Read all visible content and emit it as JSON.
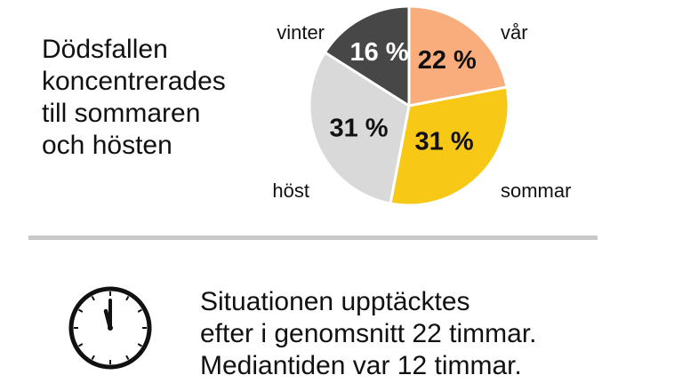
{
  "headline": {
    "lines": [
      "Dödsfallen",
      "koncentrerades",
      "till sommaren",
      "och hösten"
    ]
  },
  "chart_data": {
    "type": "pie",
    "unit": "%",
    "slices": [
      {
        "label": "vår",
        "value": 22,
        "color": "#f9ad7c",
        "value_text_color": "#111111"
      },
      {
        "label": "sommar",
        "value": 31,
        "color": "#f8c816",
        "value_text_color": "#111111"
      },
      {
        "label": "höst",
        "value": 31,
        "color": "#d9d9d9",
        "value_text_color": "#111111"
      },
      {
        "label": "vinter",
        "value": 16,
        "color": "#474747",
        "value_text_color": "#ffffff"
      }
    ]
  },
  "summary": {
    "icon": "clock-icon",
    "lines": [
      "Situationen upptäcktes",
      "efter i genomsnitt 22 timmar.",
      "Mediantiden var 12 timmar."
    ]
  },
  "colors": {
    "divider": "#c8c8c8",
    "text": "#111111"
  }
}
